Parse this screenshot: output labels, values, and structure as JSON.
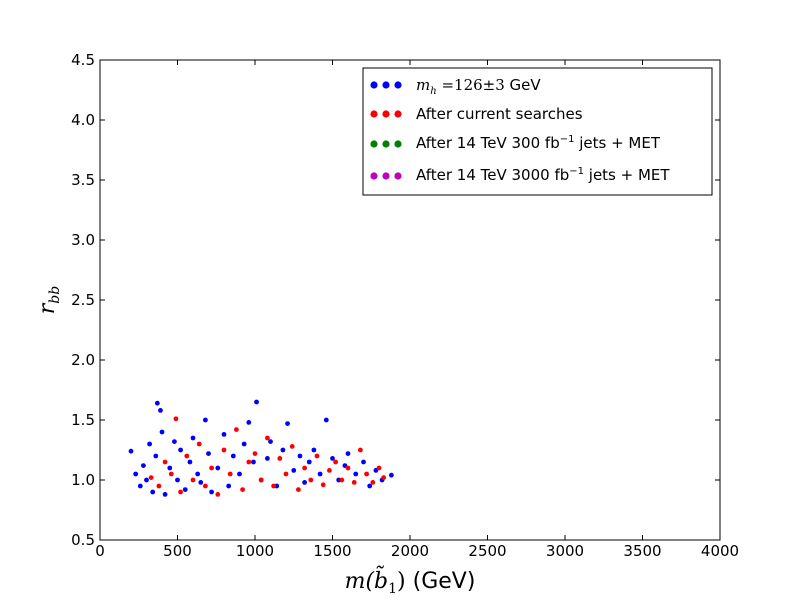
{
  "chart_data": {
    "type": "scatter",
    "xlim": [
      0,
      4000
    ],
    "ylim": [
      0.5,
      4.5
    ],
    "xticks": [
      0,
      500,
      1000,
      1500,
      2000,
      2500,
      3000,
      3500,
      4000
    ],
    "yticks": [
      0.5,
      1.0,
      1.5,
      2.0,
      2.5,
      3.0,
      3.5,
      4.0,
      4.5
    ],
    "xtick_labels": [
      "0",
      "500",
      "1000",
      "1500",
      "2000",
      "2500",
      "3000",
      "3500",
      "4000"
    ],
    "ytick_labels": [
      "0.5",
      "1.0",
      "1.5",
      "2.0",
      "2.5",
      "3.0",
      "3.5",
      "4.0",
      "4.5"
    ],
    "xlabel_math": "m(b̃",
    "xlabel_sub": "1",
    "xlabel_close": ")",
    "xlabel_unit": " (GeV)",
    "ylabel_math": "r",
    "ylabel_sub": "bb",
    "grid": false,
    "legend_position": "top-right",
    "series": [
      {
        "name": "m_h = 126 ± 3 GeV",
        "legend_math": "m",
        "legend_sub": "h",
        "legend_rest": " =126±3",
        "legend_unit": " GeV",
        "color": "#0000ff",
        "points": [
          [
            200,
            1.24
          ],
          [
            230,
            1.05
          ],
          [
            260,
            0.95
          ],
          [
            280,
            1.12
          ],
          [
            300,
            1.0
          ],
          [
            320,
            1.3
          ],
          [
            340,
            0.9
          ],
          [
            360,
            1.2
          ],
          [
            370,
            1.64
          ],
          [
            390,
            1.58
          ],
          [
            400,
            1.4
          ],
          [
            420,
            0.88
          ],
          [
            450,
            1.1
          ],
          [
            480,
            1.32
          ],
          [
            500,
            1.0
          ],
          [
            520,
            1.25
          ],
          [
            550,
            0.92
          ],
          [
            580,
            1.15
          ],
          [
            600,
            1.35
          ],
          [
            630,
            1.05
          ],
          [
            650,
            0.98
          ],
          [
            680,
            1.5
          ],
          [
            700,
            1.22
          ],
          [
            720,
            0.9
          ],
          [
            760,
            1.1
          ],
          [
            800,
            1.38
          ],
          [
            830,
            0.95
          ],
          [
            860,
            1.2
          ],
          [
            900,
            1.05
          ],
          [
            930,
            1.3
          ],
          [
            960,
            1.48
          ],
          [
            990,
            1.15
          ],
          [
            1010,
            1.65
          ],
          [
            1040,
            1.0
          ],
          [
            1080,
            1.18
          ],
          [
            1100,
            1.32
          ],
          [
            1140,
            0.95
          ],
          [
            1180,
            1.25
          ],
          [
            1210,
            1.47
          ],
          [
            1250,
            1.08
          ],
          [
            1290,
            1.2
          ],
          [
            1320,
            0.98
          ],
          [
            1350,
            1.15
          ],
          [
            1380,
            1.25
          ],
          [
            1420,
            1.05
          ],
          [
            1460,
            1.5
          ],
          [
            1500,
            1.18
          ],
          [
            1540,
            1.0
          ],
          [
            1580,
            1.12
          ],
          [
            1600,
            1.22
          ],
          [
            1650,
            1.05
          ],
          [
            1700,
            1.15
          ],
          [
            1740,
            0.95
          ],
          [
            1780,
            1.08
          ],
          [
            1820,
            1.0
          ],
          [
            1880,
            1.04
          ]
        ]
      },
      {
        "name": "After current searches",
        "color": "#ff0000",
        "points": [
          [
            330,
            1.02
          ],
          [
            380,
            0.95
          ],
          [
            420,
            1.15
          ],
          [
            460,
            1.05
          ],
          [
            490,
            1.51
          ],
          [
            520,
            0.9
          ],
          [
            560,
            1.2
          ],
          [
            600,
            1.0
          ],
          [
            640,
            1.3
          ],
          [
            680,
            0.95
          ],
          [
            720,
            1.1
          ],
          [
            760,
            0.88
          ],
          [
            800,
            1.25
          ],
          [
            840,
            1.05
          ],
          [
            880,
            1.42
          ],
          [
            920,
            0.92
          ],
          [
            960,
            1.15
          ],
          [
            1000,
            1.22
          ],
          [
            1040,
            1.0
          ],
          [
            1080,
            1.35
          ],
          [
            1120,
            0.95
          ],
          [
            1160,
            1.18
          ],
          [
            1200,
            1.05
          ],
          [
            1240,
            1.28
          ],
          [
            1280,
            0.92
          ],
          [
            1320,
            1.1
          ],
          [
            1360,
            1.0
          ],
          [
            1400,
            1.2
          ],
          [
            1440,
            0.96
          ],
          [
            1480,
            1.08
          ],
          [
            1520,
            1.15
          ],
          [
            1560,
            1.0
          ],
          [
            1600,
            1.1
          ],
          [
            1640,
            0.98
          ],
          [
            1680,
            1.25
          ],
          [
            1720,
            1.05
          ],
          [
            1760,
            0.98
          ],
          [
            1800,
            1.1
          ],
          [
            1830,
            1.02
          ]
        ]
      },
      {
        "name": "After 14 TeV 300 fb⁻¹ jets + MET",
        "legend_prefix": "After 14 TeV 300 fb",
        "legend_sup": "−1",
        "legend_suffix": " jets + MET",
        "color": "#008000",
        "points": []
      },
      {
        "name": "After 14 TeV 3000 fb⁻¹ jets + MET",
        "legend_prefix": "After 14 TeV 3000 fb",
        "legend_sup": "−1",
        "legend_suffix": " jets + MET",
        "color": "#bf00bf",
        "points": []
      }
    ]
  }
}
